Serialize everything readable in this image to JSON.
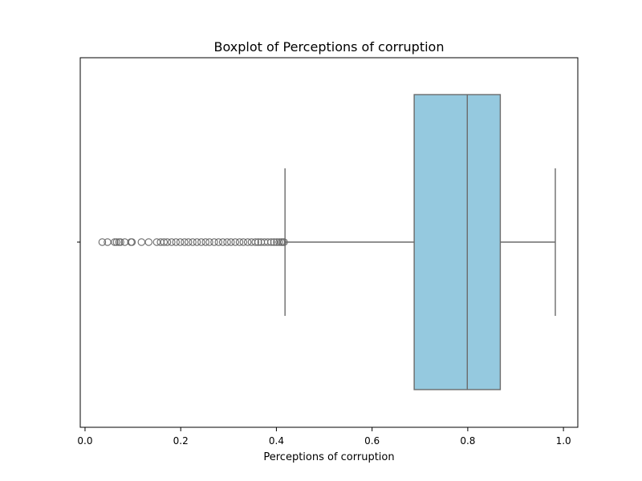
{
  "chart_data": {
    "type": "boxplot",
    "orientation": "horizontal",
    "title": "Boxplot of Perceptions of corruption",
    "xlabel": "Perceptions of corruption",
    "ylabel": "",
    "xlim": [
      -0.01,
      1.03
    ],
    "xticks": [
      0.0,
      0.2,
      0.4,
      0.6,
      0.8,
      1.0
    ],
    "xtick_labels": [
      "0.0",
      "0.2",
      "0.4",
      "0.6",
      "0.8",
      "1.0"
    ],
    "grid": false,
    "legend": "none",
    "box": {
      "whisker_low": 0.418,
      "q1": 0.688,
      "median": 0.799,
      "q3": 0.868,
      "whisker_high": 0.983
    },
    "outliers": [
      0.036,
      0.047,
      0.062,
      0.066,
      0.071,
      0.074,
      0.083,
      0.096,
      0.098,
      0.118,
      0.133,
      0.15,
      0.158,
      0.165,
      0.172,
      0.181,
      0.19,
      0.199,
      0.208,
      0.216,
      0.225,
      0.234,
      0.243,
      0.252,
      0.26,
      0.27,
      0.279,
      0.288,
      0.297,
      0.305,
      0.314,
      0.323,
      0.331,
      0.34,
      0.348,
      0.356,
      0.362,
      0.368,
      0.375,
      0.382,
      0.389,
      0.395,
      0.401,
      0.406,
      0.41,
      0.413,
      0.416
    ],
    "colors": {
      "box_fill": "#95c9df",
      "line": "#6b6b6b",
      "axis": "#000000"
    }
  }
}
